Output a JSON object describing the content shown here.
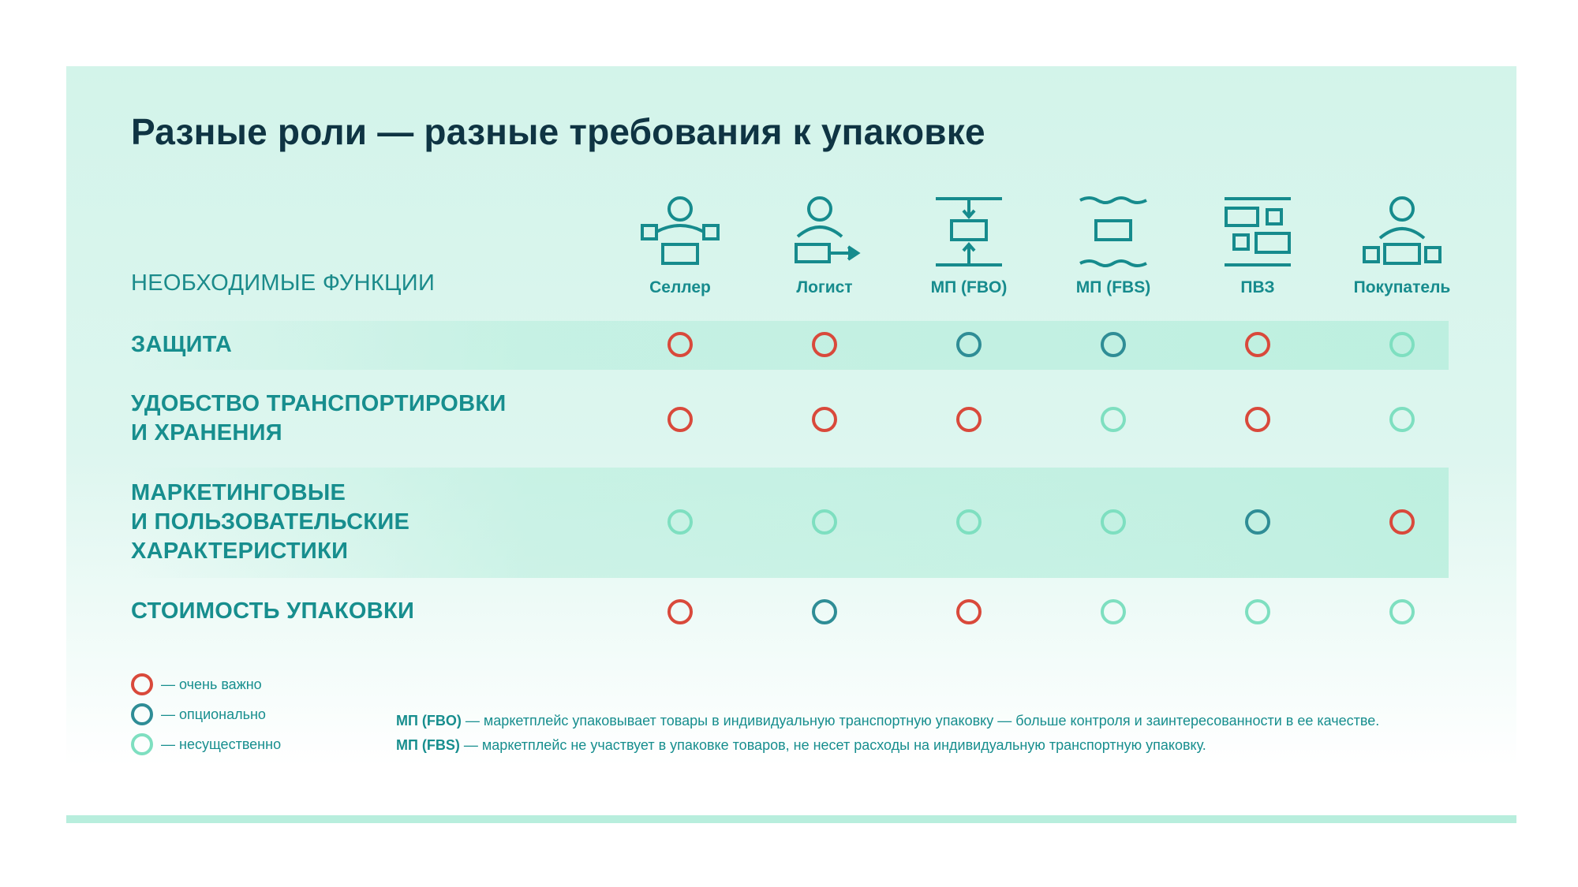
{
  "title": "Разные роли — разные требования к упаковке",
  "functions_header": "НЕОБХОДИМЫЕ ФУНКЦИИ",
  "roles": [
    {
      "label": "Селлер",
      "icon": "seller-icon"
    },
    {
      "label": "Логист",
      "icon": "logist-icon"
    },
    {
      "label": "МП (FBO)",
      "icon": "marketplace-fbo-icon"
    },
    {
      "label": "МП (FBS)",
      "icon": "marketplace-fbs-icon"
    },
    {
      "label": "ПВЗ",
      "icon": "pickup-point-icon"
    },
    {
      "label": "Покупатель",
      "icon": "buyer-icon"
    }
  ],
  "levels": {
    "high": {
      "label": "— очень важно",
      "color": "#d9493b"
    },
    "mid": {
      "label": "— опционально",
      "color": "#2f8d96"
    },
    "low": {
      "label": "— несущественно",
      "color": "#7edfc0"
    }
  },
  "rows": [
    {
      "label_lines": [
        "ЗАЩИТА"
      ],
      "values": [
        "high",
        "high",
        "mid",
        "mid",
        "high",
        "low"
      ]
    },
    {
      "label_lines": [
        "УДОБСТВО ТРАНСПОРТИРОВКИ",
        "И ХРАНЕНИЯ"
      ],
      "values": [
        "high",
        "high",
        "high",
        "low",
        "high",
        "low"
      ]
    },
    {
      "label_lines": [
        "МАРКЕТИНГОВЫЕ",
        "И ПОЛЬЗОВАТЕЛЬСКИЕ",
        "ХАРАКТЕРИСТИКИ"
      ],
      "values": [
        "low",
        "low",
        "low",
        "low",
        "mid",
        "high"
      ]
    },
    {
      "label_lines": [
        "СТОИМОСТЬ УПАКОВКИ"
      ],
      "values": [
        "high",
        "mid",
        "high",
        "low",
        "low",
        "low"
      ]
    }
  ],
  "notes": [
    {
      "term": "МП (FBO)",
      "text": " — маркетплейс упаковывает товары в индивидуальную транспортную упаковку — больше контроля и заинтересованности в ее качестве."
    },
    {
      "term": "МП (FBS)",
      "text": " — маркетплейс не участвует в упаковке товаров, не несет расходы на индивидуальную транспортную упаковку."
    }
  ],
  "colors": {
    "accent": "#168b8d",
    "title": "#0f3443",
    "band": "#b8eedd"
  }
}
